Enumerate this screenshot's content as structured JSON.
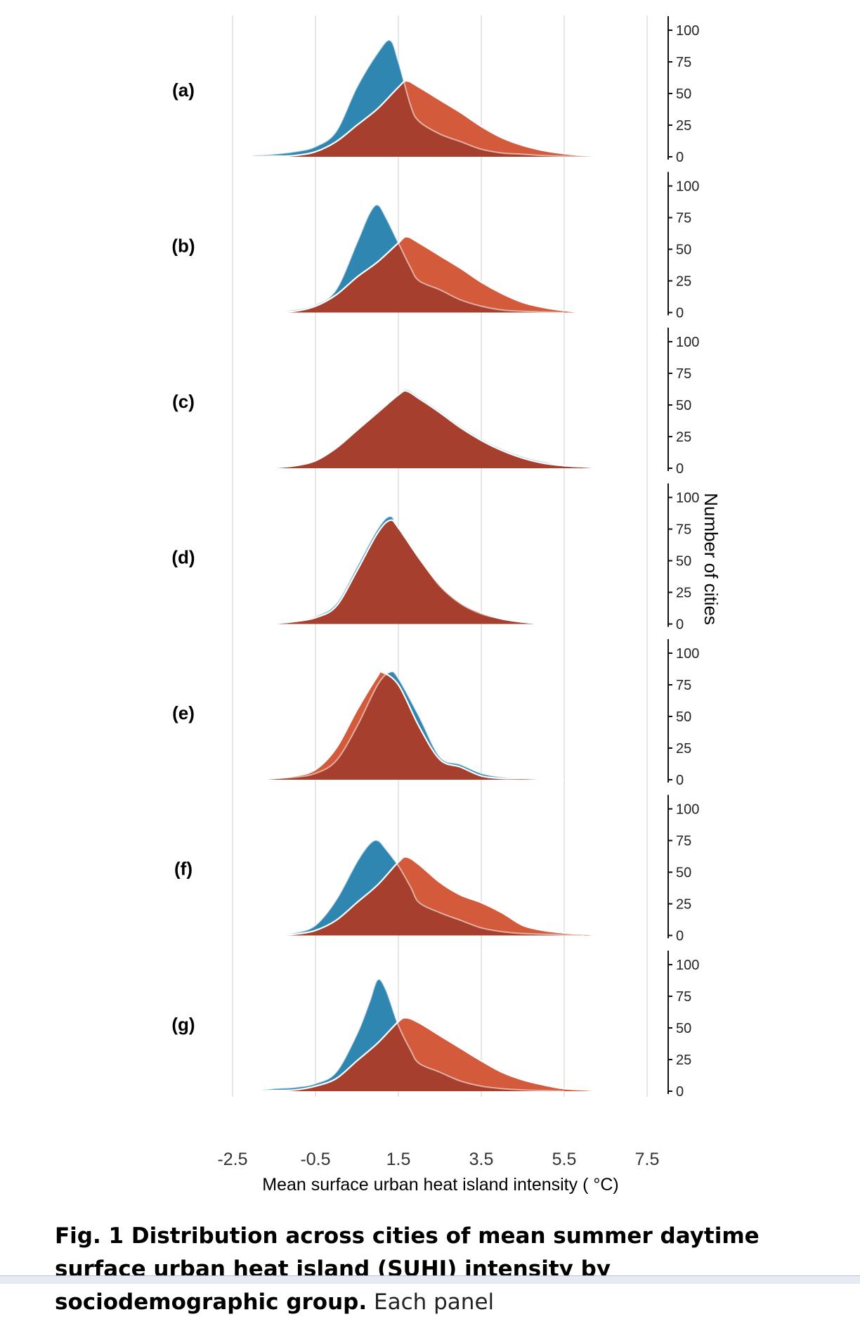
{
  "chart_data": {
    "type": "area",
    "subtype": "ridgeline-density",
    "xlabel": "Mean surface urban heat island intensity ( °C)",
    "ylabel": "Number of cities",
    "xlim": [
      -2.5,
      7.5
    ],
    "x_ticks": [
      "-2.5",
      "-0.5",
      "1.5",
      "3.5",
      "5.5",
      "7.5"
    ],
    "ylim": [
      0,
      100
    ],
    "y_ticks": [
      "0",
      "25",
      "50",
      "75",
      "100"
    ],
    "grid": "vertical",
    "colors": {
      "series_a": "#2f86b0",
      "series_b": "#d45a3c",
      "overlap": "#a63f2e"
    },
    "panels": [
      {
        "label": "(a)",
        "series": [
          {
            "x": [
              -2.0,
              -1.5,
              -1.0,
              -0.5,
              0,
              0.5,
              1.0,
              1.3,
              1.5,
              1.8,
              2.0,
              2.5,
              3.0,
              3.5,
              4.0,
              4.5,
              5.0,
              5.5,
              6.0,
              6.5
            ],
            "values": [
              1,
              2,
              4,
              8,
              20,
              55,
              82,
              92,
              75,
              40,
              28,
              18,
              12,
              6,
              3,
              2,
              1,
              0.5,
              0.2,
              0
            ]
          },
          {
            "x": [
              -2.0,
              -1.5,
              -1.0,
              -0.5,
              0,
              0.5,
              1.0,
              1.5,
              1.7,
              2.0,
              2.5,
              3.0,
              3.5,
              4.0,
              4.5,
              5.0,
              5.5,
              6.0,
              6.5
            ],
            "values": [
              0,
              0.5,
              1,
              4,
              12,
              25,
              38,
              55,
              60,
              55,
              45,
              35,
              24,
              15,
              9,
              5,
              2.5,
              1,
              0
            ]
          }
        ]
      },
      {
        "label": "(b)",
        "series": [
          {
            "x": [
              -2.0,
              -1.5,
              -1.0,
              -0.5,
              0,
              0.5,
              0.8,
              1.0,
              1.2,
              1.5,
              1.8,
              2.0,
              2.5,
              3.0,
              3.5,
              4.0,
              4.5,
              5.0,
              5.5
            ],
            "values": [
              0,
              0.5,
              2,
              6,
              18,
              55,
              78,
              85,
              75,
              55,
              35,
              25,
              18,
              10,
              5,
              2,
              1,
              0.5,
              0
            ]
          },
          {
            "x": [
              -2.0,
              -1.5,
              -1.0,
              -0.5,
              0,
              0.5,
              1.0,
              1.5,
              1.7,
              2.0,
              2.5,
              3.0,
              3.5,
              4.0,
              4.5,
              5.0,
              5.5,
              6.0
            ],
            "values": [
              0,
              0.5,
              1,
              5,
              14,
              28,
              40,
              55,
              60,
              55,
              45,
              35,
              24,
              15,
              8,
              4,
              1.5,
              0
            ]
          }
        ]
      },
      {
        "label": "(c)",
        "series": [
          {
            "x": [
              -2.0,
              -1.5,
              -1.0,
              -0.5,
              0,
              0.5,
              1.0,
              1.5,
              1.7,
              2.0,
              2.5,
              3.0,
              3.5,
              4.0,
              4.5,
              5.0,
              5.5,
              6.0,
              6.5
            ],
            "values": [
              0,
              0.5,
              2,
              6,
              16,
              30,
              45,
              58,
              62,
              56,
              45,
              33,
              23,
              15,
              9,
              5,
              2,
              1,
              0
            ]
          },
          {
            "x": [
              -2.0,
              -1.5,
              -1.0,
              -0.5,
              0,
              0.5,
              1.0,
              1.5,
              1.7,
              2.0,
              2.5,
              3.0,
              3.5,
              4.0,
              4.5,
              5.0,
              5.5,
              6.0,
              6.5
            ],
            "values": [
              0,
              0.5,
              2,
              6,
              16,
              30,
              44,
              58,
              61,
              55,
              44,
              32,
              22,
              14,
              8,
              4,
              2,
              1,
              0
            ]
          }
        ]
      },
      {
        "label": "(d)",
        "series": [
          {
            "x": [
              -2.0,
              -1.5,
              -1.0,
              -0.5,
              0,
              0.5,
              1.0,
              1.3,
              1.5,
              2.0,
              2.5,
              3.0,
              3.5,
              4.0,
              4.5,
              5.0
            ],
            "values": [
              0,
              0.5,
              2,
              6,
              16,
              45,
              75,
              85,
              76,
              52,
              30,
              16,
              8,
              4,
              1.5,
              0
            ]
          },
          {
            "x": [
              -2.0,
              -1.5,
              -1.0,
              -0.5,
              0,
              0.5,
              1.0,
              1.3,
              1.5,
              2.0,
              2.5,
              3.0,
              3.5,
              4.0,
              4.5,
              5.0
            ],
            "values": [
              0,
              0.5,
              2,
              5,
              14,
              42,
              72,
              82,
              76,
              52,
              31,
              17,
              9,
              4,
              1.5,
              0
            ]
          }
        ]
      },
      {
        "label": "(e)",
        "series": [
          {
            "x": [
              -2.0,
              -1.5,
              -1.0,
              -0.5,
              0,
              0.5,
              1.0,
              1.3,
              1.5,
              2.0,
              2.5,
              3.0,
              3.5,
              4.0,
              4.5,
              5.0,
              5.5
            ],
            "values": [
              0,
              1,
              2,
              5,
              15,
              42,
              75,
              85,
              80,
              50,
              18,
              12,
              5,
              2,
              1,
              0.5,
              0
            ]
          },
          {
            "x": [
              -2.0,
              -1.5,
              -1.0,
              -0.5,
              0,
              0.5,
              1.0,
              1.1,
              1.5,
              2.0,
              2.5,
              3.0,
              3.5,
              4.0,
              4.5,
              5.0,
              5.5
            ],
            "values": [
              0,
              1,
              3,
              8,
              25,
              55,
              82,
              85,
              75,
              42,
              16,
              10,
              3,
              1,
              1,
              0.5,
              0
            ]
          }
        ]
      },
      {
        "label": "(f)",
        "series": [
          {
            "x": [
              -2.0,
              -1.5,
              -1.0,
              -0.5,
              0,
              0.5,
              0.8,
              1.0,
              1.2,
              1.5,
              1.8,
              2.0,
              2.5,
              3.0,
              3.5,
              4.0,
              4.5,
              5.0,
              5.5,
              6.0
            ],
            "values": [
              0,
              0.5,
              2,
              8,
              28,
              58,
              72,
              75,
              68,
              55,
              38,
              26,
              18,
              12,
              6,
              3,
              1.5,
              1,
              0.5,
              0
            ]
          },
          {
            "x": [
              -2.0,
              -1.5,
              -1.0,
              -0.5,
              0,
              0.5,
              1.0,
              1.5,
              1.7,
              2.0,
              2.5,
              3.0,
              3.5,
              4.0,
              4.5,
              5.0,
              5.5,
              6.0,
              6.5
            ],
            "values": [
              0,
              0.5,
              1,
              4,
              12,
              26,
              40,
              58,
              62,
              56,
              42,
              32,
              26,
              18,
              8,
              4,
              2,
              1,
              0
            ]
          }
        ]
      },
      {
        "label": "(g)",
        "series": [
          {
            "x": [
              -2.0,
              -1.5,
              -1.0,
              -0.5,
              0,
              0.5,
              0.8,
              1.0,
              1.2,
              1.5,
              1.8,
              2.0,
              2.5,
              3.0,
              3.5,
              4.0,
              4.5,
              5.0,
              5.5
            ],
            "values": [
              0,
              2,
              3,
              6,
              15,
              45,
              70,
              88,
              80,
              52,
              32,
              22,
              15,
              8,
              4,
              2,
              1,
              0.5,
              0
            ]
          },
          {
            "x": [
              -2.0,
              -1.5,
              -1.0,
              -0.5,
              0,
              0.5,
              1.0,
              1.5,
              1.7,
              2.0,
              2.5,
              3.0,
              3.5,
              4.0,
              4.5,
              5.0,
              5.5,
              6.0,
              6.5
            ],
            "values": [
              0,
              0.5,
              1,
              4,
              10,
              24,
              38,
              55,
              58,
              54,
              44,
              34,
              24,
              15,
              9,
              5,
              2,
              1,
              0
            ]
          }
        ]
      }
    ]
  },
  "caption": {
    "bold": "Fig. 1 Distribution across cities of mean summer daytime surface urban heat island (SUHI) intensity by sociodemographic group.",
    "regular": "Each panel"
  }
}
